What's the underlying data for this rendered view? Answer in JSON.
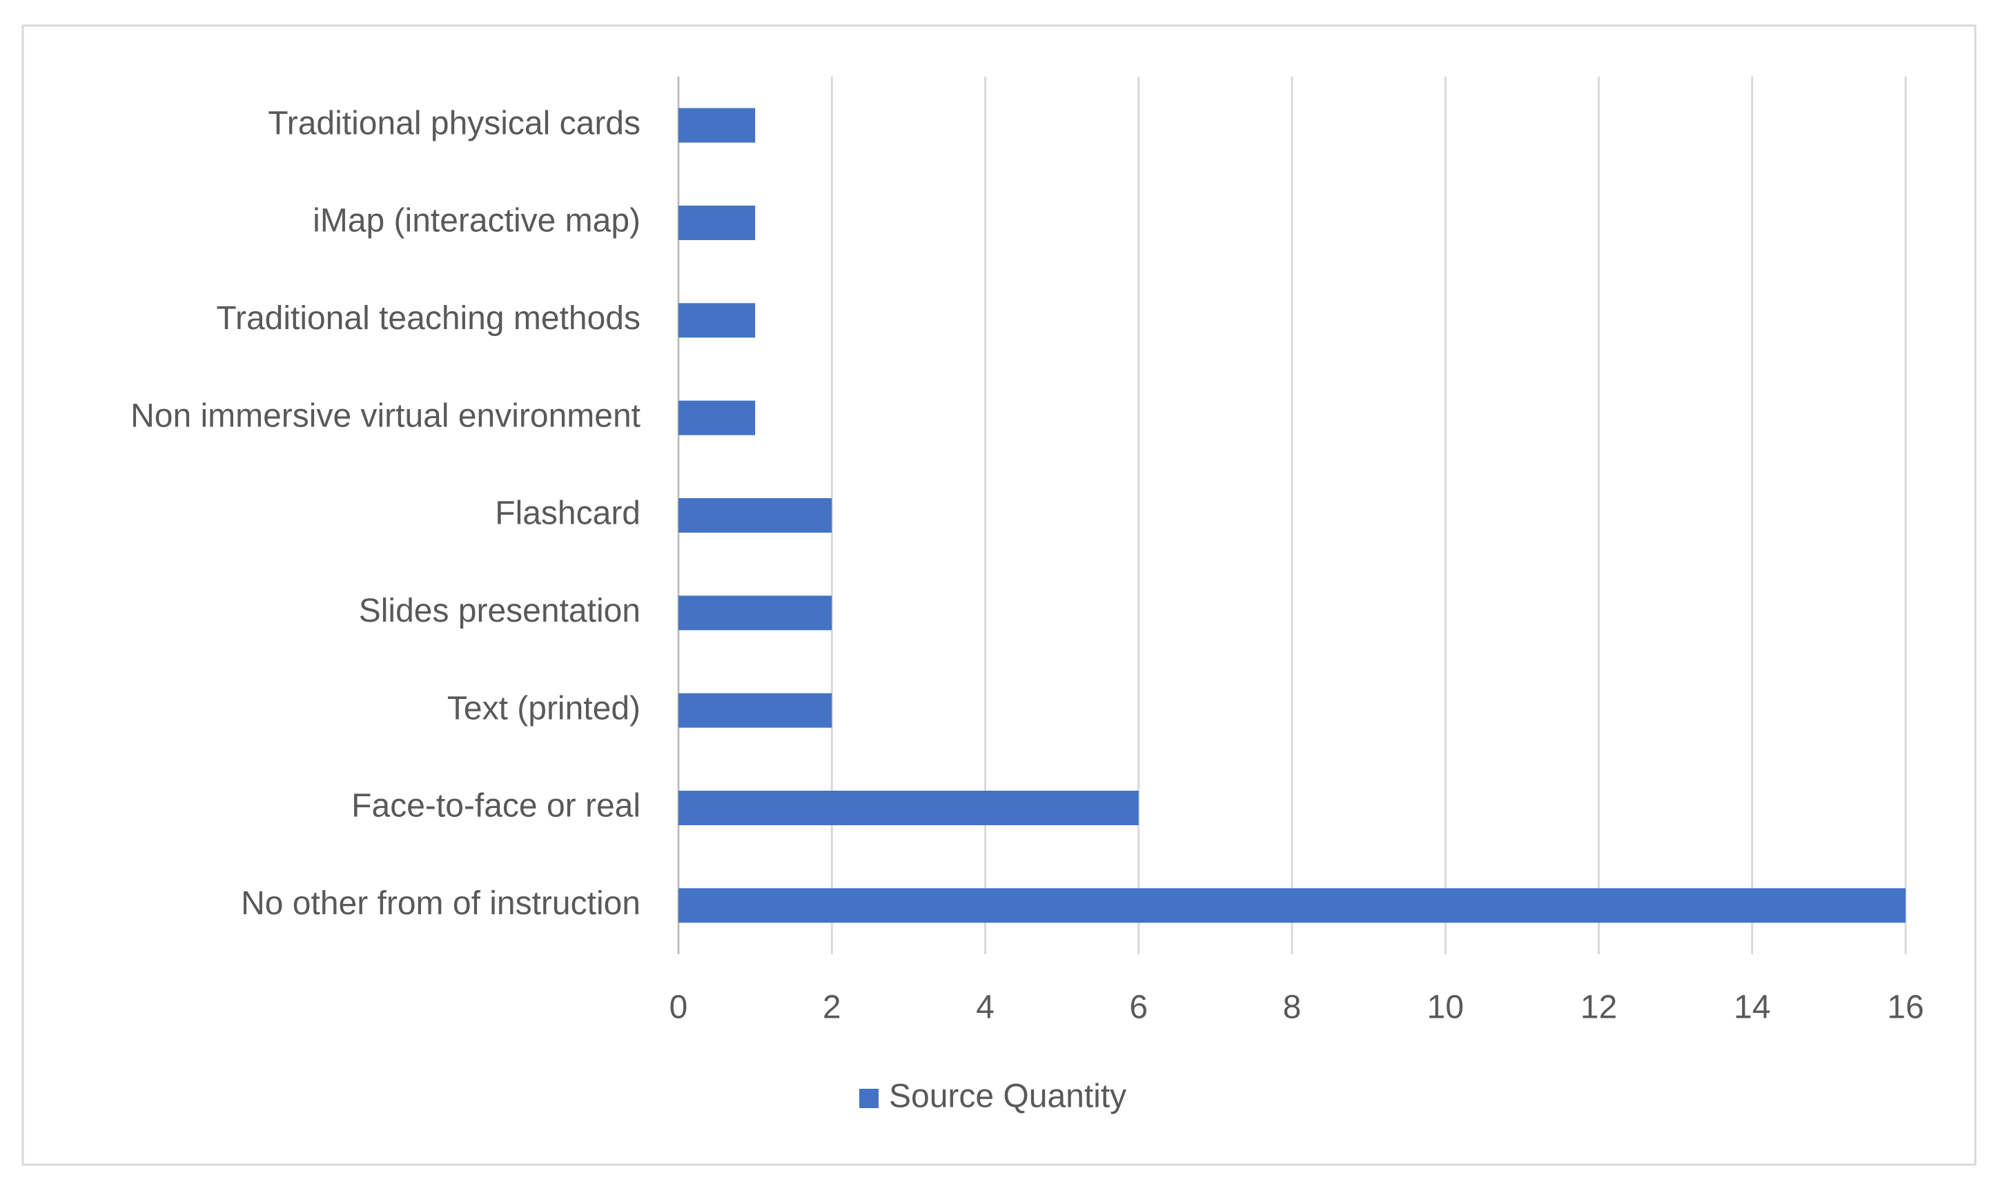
{
  "chart_data": {
    "type": "bar",
    "orientation": "horizontal",
    "categories": [
      "Traditional physical cards",
      "iMap (interactive map)",
      "Traditional teaching methods",
      "Non immersive virtual environment",
      "Flashcard",
      "Slides presentation",
      "Text (printed)",
      "Face-to-face or real",
      "No other from of instruction"
    ],
    "series": [
      {
        "name": "Source Quantity",
        "color": "#4472c4",
        "values": [
          1,
          1,
          1,
          1,
          2,
          2,
          2,
          6,
          16
        ]
      }
    ],
    "xlim": [
      0,
      16
    ],
    "xticks": [
      0,
      2,
      4,
      6,
      8,
      10,
      12,
      14,
      16
    ],
    "grid": true,
    "legend": "bottom"
  }
}
